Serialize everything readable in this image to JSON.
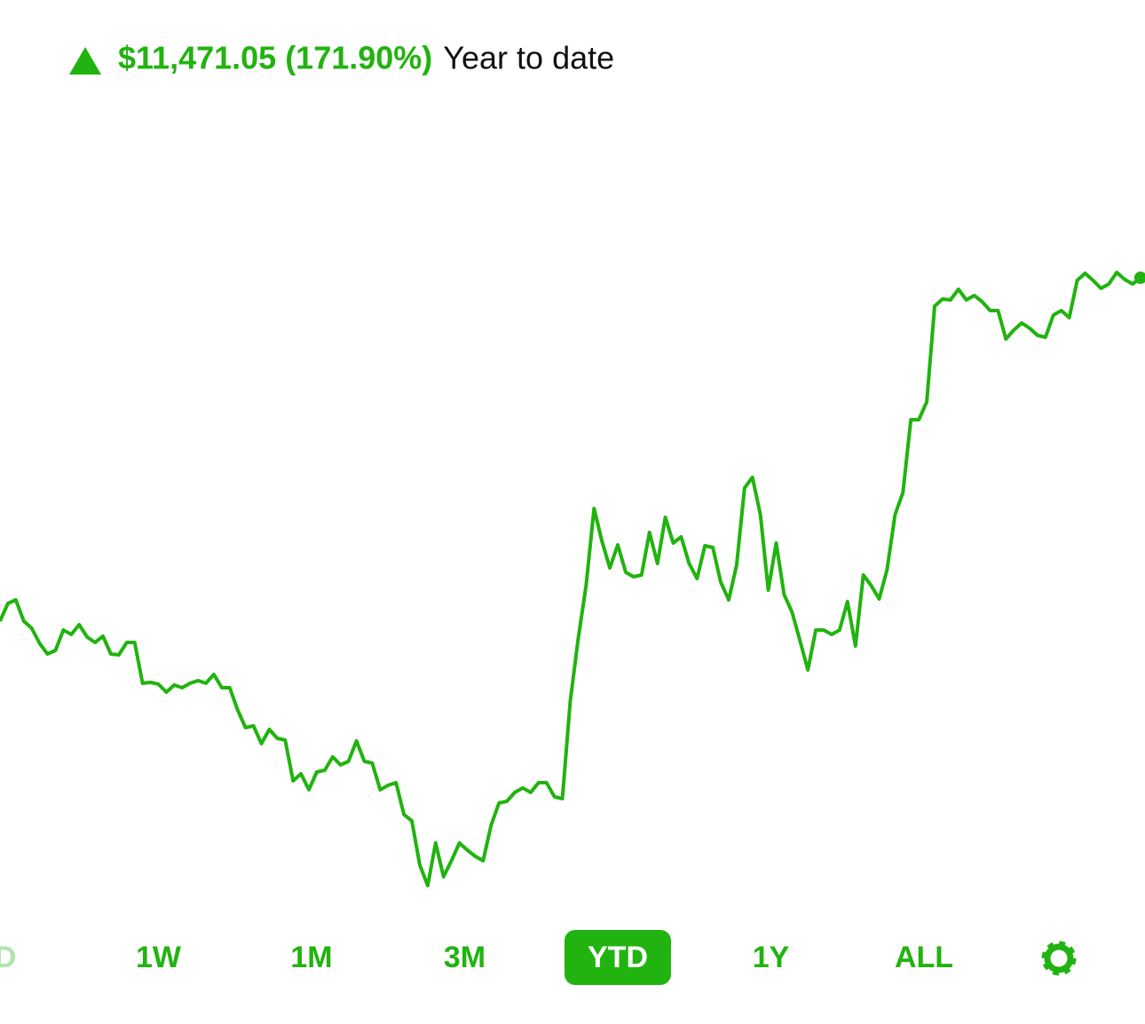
{
  "header": {
    "change": "$11,471.05 (171.90%)",
    "period": "Year to date"
  },
  "chart_data": {
    "type": "line",
    "color": "#21b30f",
    "ylim": [
      0,
      720
    ],
    "values": [
      310,
      330,
      334,
      310,
      302,
      285,
      273,
      277,
      300,
      295,
      306,
      292,
      286,
      293,
      273,
      272,
      286,
      286,
      240,
      241,
      239,
      230,
      238,
      235,
      240,
      243,
      240,
      250,
      235,
      235,
      210,
      190,
      192,
      172,
      188,
      178,
      176,
      130,
      138,
      120,
      140,
      142,
      157,
      148,
      152,
      175,
      152,
      150,
      120,
      125,
      128,
      92,
      85,
      35,
      12,
      60,
      22,
      40,
      60,
      52,
      45,
      40,
      80,
      105,
      107,
      117,
      122,
      117,
      128,
      128,
      112,
      110,
      220,
      290,
      350,
      437,
      400,
      370,
      396,
      365,
      360,
      362,
      410,
      375,
      427,
      398,
      405,
      375,
      358,
      395,
      393,
      354,
      334,
      373,
      460,
      472,
      430,
      345,
      398,
      340,
      320,
      288,
      255,
      300,
      300,
      295,
      300,
      332,
      282,
      362,
      350,
      335,
      368,
      430,
      455,
      537,
      537,
      557,
      665,
      673,
      672,
      684,
      672,
      677,
      670,
      660,
      660,
      628,
      638,
      646,
      640,
      632,
      630,
      655,
      660,
      652,
      694,
      702,
      694,
      685,
      690,
      703,
      695,
      690,
      697
    ]
  },
  "ranges": {
    "buttons": [
      "D",
      "1W",
      "1M",
      "3M",
      "YTD",
      "1Y",
      "ALL"
    ],
    "selected": 4
  }
}
